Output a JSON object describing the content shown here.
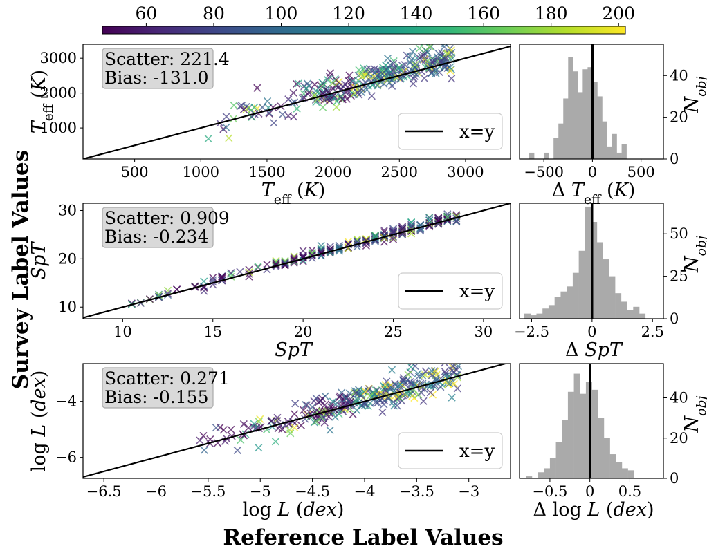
{
  "figure": {
    "xlabel": "Reference Label Values",
    "ylabel": "Survey Label Values"
  },
  "colorbar": {
    "cmap": "viridis",
    "range": [
      47,
      202
    ],
    "ticks": [
      60,
      80,
      100,
      120,
      140,
      160,
      180,
      200
    ],
    "colors": [
      "#440154",
      "#482878",
      "#3e4989",
      "#31688e",
      "#26828e",
      "#1f9e89",
      "#35b779",
      "#6ece58",
      "#b5de2b",
      "#fde725"
    ]
  },
  "chart_data": [
    {
      "id": "teff",
      "type": "scatter",
      "title": "",
      "xlabel": "T_eff (K)",
      "ylabel": "T_eff (K)",
      "xlim": [
        110,
        3340
      ],
      "ylim": [
        110,
        3400
      ],
      "xticks": [
        500,
        1000,
        1500,
        2000,
        2500,
        3000
      ],
      "yticks": [
        1000,
        2000,
        3000
      ],
      "legend": {
        "label": "x=y",
        "placement": "lower-right"
      },
      "stats": {
        "scatter": "Scatter: 221.4",
        "bias": "Bias: -131.0"
      },
      "trend": {
        "low_x": 1000,
        "high_x": 2900,
        "scatter": 221.4,
        "bias": -131.0,
        "n": 320,
        "seed": 11,
        "color_bias": 0.15
      },
      "histogram": {
        "xlabel": "Δ T_eff (K)",
        "ylabel": "N_obj",
        "xlim": [
          -750,
          730
        ],
        "ylim": [
          0,
          55
        ],
        "xticks": [
          -500,
          0,
          500
        ],
        "yticks": [
          0,
          20,
          40
        ],
        "bin_start": -650,
        "bin_width": 50,
        "counts": [
          3,
          0,
          0,
          3,
          0,
          10,
          17,
          29,
          49,
          42,
          32,
          43,
          44,
          37,
          30,
          18,
          6,
          12,
          3,
          7,
          0
        ]
      }
    },
    {
      "id": "spt",
      "type": "scatter",
      "title": "",
      "xlabel": "SpT",
      "ylabel": "SpT",
      "xlim": [
        7.8,
        31.5
      ],
      "ylim": [
        7.6,
        31.5
      ],
      "xticks": [
        10,
        15,
        20,
        25,
        30
      ],
      "yticks": [
        10,
        20,
        30
      ],
      "legend": {
        "label": "x=y",
        "placement": "lower-right"
      },
      "stats": {
        "scatter": "Scatter: 0.909",
        "bias": "Bias: -0.234"
      },
      "trend": {
        "low_x": 10,
        "high_x": 28.5,
        "scatter": 0.909,
        "bias": -0.234,
        "n": 300,
        "seed": 23,
        "color_bias": 0.0,
        "discrete": true
      },
      "histogram": {
        "xlabel": "Δ SpT",
        "ylabel": "N_obj",
        "xlim": [
          -3.0,
          2.95
        ],
        "ylim": [
          0,
          68
        ],
        "xticks": [
          -2.5,
          0.0,
          2.5
        ],
        "yticks": [
          0,
          25,
          50
        ],
        "bin_start": -2.8,
        "bin_width": 0.25,
        "counts": [
          3,
          2,
          3,
          6,
          8,
          13,
          16,
          19,
          27,
          40,
          66,
          57,
          45,
          35,
          25,
          15,
          10,
          5,
          7,
          3,
          0
        ]
      }
    },
    {
      "id": "logl",
      "type": "scatter",
      "title": "",
      "xlabel": "log L (dex)",
      "ylabel": "log L (dex)",
      "xlim": [
        -6.7,
        -2.6
      ],
      "ylim": [
        -6.75,
        -2.65
      ],
      "xticks": [
        -6.5,
        -6.0,
        -5.5,
        -5.0,
        -4.5,
        -4.0,
        -3.5,
        -3.0
      ],
      "yticks": [
        -6,
        -4
      ],
      "legend": {
        "label": "x=y",
        "placement": "lower-right"
      },
      "stats": {
        "scatter": "Scatter: 0.271",
        "bias": "Bias: -0.155"
      },
      "trend": {
        "low_x": -5.6,
        "high_x": -3.1,
        "scatter": 0.271,
        "bias": -0.155,
        "n": 320,
        "seed": 37,
        "color_bias": 0.15
      },
      "histogram": {
        "xlabel": "Δ log L (dex)",
        "ylabel": "N_obj",
        "xlim": [
          -0.88,
          0.92
        ],
        "ylim": [
          0,
          57
        ],
        "xticks": [
          -0.5,
          0.0,
          0.5
        ],
        "yticks": [
          0,
          20,
          40
        ],
        "bin_start": -0.8,
        "bin_width": 0.075,
        "counts": [
          1,
          0,
          3,
          5,
          10,
          18,
          29,
          43,
          52,
          42,
          48,
          44,
          30,
          20,
          12,
          8,
          5,
          4
        ]
      }
    }
  ]
}
